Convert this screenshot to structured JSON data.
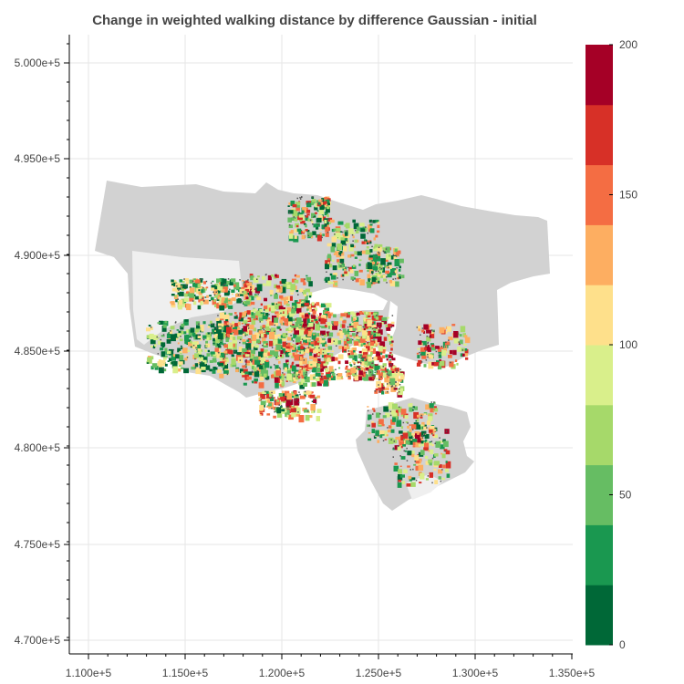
{
  "map": {
    "title": "Change in weighted walking distance by difference Gaussian - initial",
    "x_ticks": [
      "1.100e+5",
      "1.150e+5",
      "1.200e+5",
      "1.250e+5",
      "1.300e+5",
      "1.350e+5"
    ],
    "y_ticks": [
      "5.000e+5",
      "4.950e+5",
      "4.900e+5",
      "4.850e+5",
      "4.800e+5",
      "4.750e+5",
      "4.700e+5"
    ],
    "colorbar": {
      "labels": [
        "200",
        "150",
        "100",
        "50",
        "0"
      ],
      "min": 0,
      "max": 200,
      "colors": [
        "#006837",
        "#1a9850",
        "#66bd63",
        "#a6d96a",
        "#d9ef8b",
        "#fee08b",
        "#fdae61",
        "#f46d43",
        "#d73027",
        "#a50026"
      ]
    },
    "colors": {
      "land": "#d2d2d2",
      "land_light": "#efefef",
      "grid": "#e5e5e5",
      "text": "#444444"
    }
  }
}
